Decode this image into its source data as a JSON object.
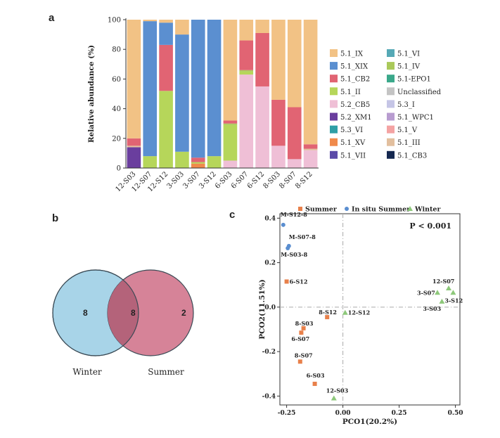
{
  "panels": {
    "a": "a",
    "b": "b",
    "c": "c"
  },
  "colors": {
    "5.1_IX": "#f2c285",
    "5.1_XIX": "#5b8fd0",
    "5.1_CB2": "#e16473",
    "5.1_II": "#b6d65a",
    "5.2_CB5": "#efbfd6",
    "5.2_XM1": "#6a3e9e",
    "5.3_VI": "#2e9fa6",
    "5.1_XV": "#f08a4b",
    "5.1_VII": "#5b4aa8",
    "5.1_VI": "#56a9b6",
    "5.1_IV": "#aac95a",
    "5.1-EPO1": "#3aa88a",
    "Unclassified": "#c4c4c4",
    "5.3_I": "#c5c5e6",
    "5.1_WPC1": "#b89cd0",
    "5.1_V": "#f4a3a3",
    "5.1_III": "#e2bf9e",
    "5.1_CB3": "#152850",
    "summer": "#e8804a",
    "insitu": "#5a8ed0",
    "winter": "#8dc87a",
    "winter_circle": "#a8d4e8",
    "summer_circle": "#cf6d86",
    "pvalue": "#d0202f"
  },
  "chart_data": [
    {
      "type": "bar",
      "stacked": true,
      "ylabel": "Relative abundance (%)",
      "xlabel": "",
      "ylim": [
        0,
        100
      ],
      "yticks": [
        "0",
        "20",
        "40",
        "60",
        "80",
        "100"
      ],
      "categories": [
        "12-S03",
        "12-S07",
        "12-S12",
        "3-S03",
        "3-S07",
        "3-S12",
        "6-S03",
        "6-S07",
        "6-S12",
        "8-S03",
        "8-S07",
        "8-S12"
      ],
      "legend_position": "right",
      "legend": [
        "5.1_IX",
        "5.1_XIX",
        "5.1_CB2",
        "5.1_II",
        "5.2_CB5",
        "5.2_XM1",
        "5.3_VI",
        "5.1_XV",
        "5.1_VII",
        "5.1_VI",
        "5.1_IV",
        "5.1-EPO1",
        "Unclassified",
        "5.3_I",
        "5.1_WPC1",
        "5.1_V",
        "5.1_III",
        "5.1_CB3"
      ],
      "series": [
        {
          "name": "5.2_XM1",
          "values": [
            14,
            0,
            0,
            0,
            0,
            0,
            0,
            0,
            0,
            0,
            0,
            0
          ]
        },
        {
          "name": "5.1_XV",
          "values": [
            0,
            0,
            0,
            0,
            3,
            0,
            0,
            0,
            0,
            0,
            0,
            0
          ]
        },
        {
          "name": "5.2_CB5",
          "values": [
            0,
            0,
            0,
            0,
            0,
            0,
            5,
            63,
            55,
            15,
            6,
            12
          ]
        },
        {
          "name": "5.1_III",
          "values": [
            1,
            0,
            0,
            0,
            0,
            0,
            0,
            0,
            0,
            0,
            0,
            1
          ]
        },
        {
          "name": "5.1_II",
          "values": [
            0,
            8,
            52,
            11,
            1,
            8,
            24,
            2,
            0,
            0,
            0,
            0
          ]
        },
        {
          "name": "5.1_IV",
          "values": [
            0,
            0,
            0,
            0,
            0,
            0,
            1,
            1,
            0,
            0,
            0,
            0
          ]
        },
        {
          "name": "5.1_CB2",
          "values": [
            5,
            0,
            31,
            0,
            3,
            0,
            2,
            20,
            36,
            31,
            35,
            3
          ]
        },
        {
          "name": "5.1_XIX",
          "values": [
            0,
            91,
            15,
            79,
            93,
            92,
            0,
            0,
            0,
            0,
            0,
            0
          ]
        },
        {
          "name": "5.1_IX",
          "values": [
            80,
            1,
            2,
            10,
            0,
            0,
            68,
            14,
            9,
            54,
            59,
            84
          ]
        }
      ]
    },
    {
      "type": "venn",
      "sets": [
        {
          "name": "Winter",
          "only": 8
        },
        {
          "name": "Summer",
          "only": 2
        }
      ],
      "intersection": 8
    },
    {
      "type": "scatter",
      "xlabel": "PCO1(20.2%)",
      "ylabel": "PCO2(11.51%)",
      "xlim": [
        -0.28,
        0.52
      ],
      "ylim": [
        -0.44,
        0.42
      ],
      "xticks": [
        -0.25,
        0,
        0.25,
        0.5
      ],
      "xtick_labels": [
        "-0.25",
        "0.00",
        "0.25",
        "0.50"
      ],
      "yticks": [
        -0.4,
        -0.2,
        0,
        0.2,
        0.4
      ],
      "ytick_labels": [
        "-0.4",
        "-0.2",
        "0.0",
        "0.2",
        "0.4"
      ],
      "legend_position": "top",
      "annotation": "P < 0.001",
      "series": [
        {
          "name": "Summer",
          "marker": "square",
          "points": [
            {
              "label": "6-S12",
              "x": -0.25,
              "y": 0.115
            },
            {
              "label": "8-S12",
              "x": -0.07,
              "y": -0.045
            },
            {
              "label": "8-S03",
              "x": -0.175,
              "y": -0.095
            },
            {
              "label": "6-S07",
              "x": -0.185,
              "y": -0.115
            },
            {
              "label": "8-S07",
              "x": -0.19,
              "y": -0.245
            },
            {
              "label": "6-S03",
              "x": -0.125,
              "y": -0.345
            }
          ]
        },
        {
          "name": "In situ Summer",
          "marker": "circle",
          "points": [
            {
              "label": "M-S12-8",
              "x": -0.265,
              "y": 0.37
            },
            {
              "label": "M-S07-8",
              "x": -0.24,
              "y": 0.275
            },
            {
              "label": "M-S03-8",
              "x": -0.245,
              "y": 0.265
            }
          ]
        },
        {
          "name": "Winter",
          "marker": "triangle",
          "points": [
            {
              "label": "12-S12",
              "x": 0.01,
              "y": -0.025
            },
            {
              "label": "12-S03",
              "x": -0.04,
              "y": -0.41
            },
            {
              "label": "12-S07",
              "x": 0.47,
              "y": 0.085
            },
            {
              "label": "3-S07",
              "x": 0.42,
              "y": 0.065
            },
            {
              "label": "3-S12",
              "x": 0.49,
              "y": 0.065
            },
            {
              "label": "3-S03",
              "x": 0.44,
              "y": 0.025
            }
          ]
        }
      ]
    }
  ]
}
